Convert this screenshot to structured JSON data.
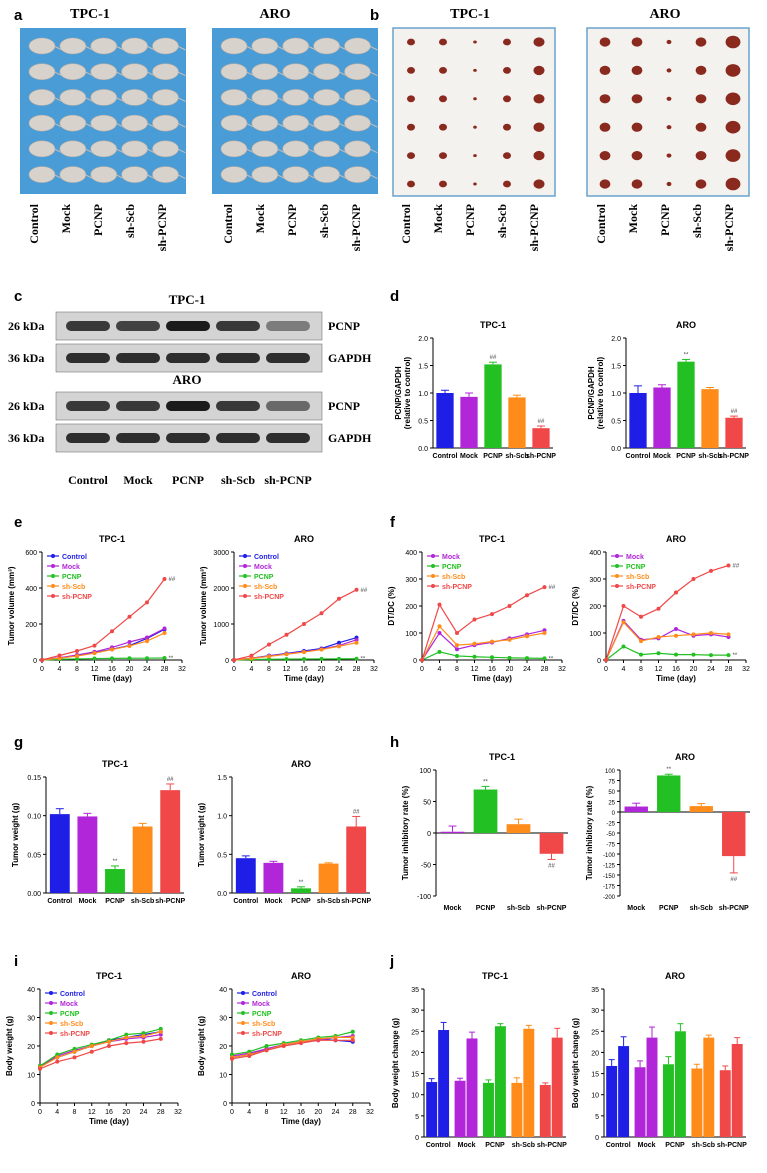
{
  "panel_letters": [
    "a",
    "b",
    "c",
    "d",
    "e",
    "f",
    "g",
    "h",
    "i",
    "j"
  ],
  "groups": [
    "Control",
    "Mock",
    "PCNP",
    "sh-Scb",
    "sh-PCNP"
  ],
  "groups_no_control": [
    "Mock",
    "PCNP",
    "sh-Scb",
    "sh-PCNP"
  ],
  "colors": {
    "Control": "#1e1ee6",
    "Mock": "#b026d8",
    "PCNP": "#22c022",
    "sh-Scb": "#ff8c1a",
    "sh-PCNP": "#f04848"
  },
  "panel_a": {
    "titles": [
      "TPC-1",
      "ARO"
    ],
    "photo_colors": {
      "bg": "#4a9cd6",
      "mouse": "#d8d2cc"
    }
  },
  "panel_b": {
    "titles": [
      "TPC-1",
      "ARO"
    ],
    "photo_colors": {
      "bg": "#f4f2ef",
      "tumor": "#8a2a1e"
    }
  },
  "panel_c": {
    "titles": [
      "TPC-1",
      "ARO"
    ],
    "row_left_labels": [
      "26 kDa",
      "36 kDa",
      "26 kDa",
      "36 kDa"
    ],
    "row_right_labels": [
      "PCNP",
      "GAPDH",
      "PCNP",
      "GAPDH"
    ],
    "lane_labels": [
      "Control",
      "Mock",
      "PCNP",
      "sh-Scb",
      "sh-PCNP"
    ]
  },
  "annotations": {
    "sig_star": "**",
    "sig_hash": "##"
  },
  "chart_data": [
    {
      "id": "d1",
      "type": "bar",
      "title": "TPC-1",
      "ylabel": "PCNP/GAPDH (relative to control)",
      "categories": [
        "Control",
        "Mock",
        "PCNP",
        "sh-Scb",
        "sh-PCNP"
      ],
      "values": [
        1.0,
        0.93,
        1.52,
        0.92,
        0.36
      ],
      "errors": [
        0.05,
        0.07,
        0.04,
        0.04,
        0.04
      ],
      "ylim": [
        0,
        2.0
      ],
      "yticks": [
        0.0,
        0.5,
        1.0,
        1.5,
        2.0
      ],
      "yticklabels": [
        "0.0",
        "0.5",
        "1.0",
        "1.5",
        "2.0"
      ],
      "marks": {
        "PCNP": "##",
        "sh-PCNP": "##"
      }
    },
    {
      "id": "d2",
      "type": "bar",
      "title": "ARO",
      "ylabel": "PCNP/GAPDH (relative to control)",
      "categories": [
        "Control",
        "Mock",
        "PCNP",
        "sh-Scb",
        "sh-PCNP"
      ],
      "values": [
        1.0,
        1.1,
        1.57,
        1.07,
        0.55
      ],
      "errors": [
        0.13,
        0.05,
        0.04,
        0.03,
        0.03
      ],
      "ylim": [
        0,
        2.0
      ],
      "yticks": [
        0.0,
        0.5,
        1.0,
        1.5,
        2.0
      ],
      "yticklabels": [
        "0.0",
        "0.5",
        "1.0",
        "1.5",
        "2.0"
      ],
      "marks": {
        "PCNP": "**",
        "sh-PCNP": "##"
      }
    },
    {
      "id": "e1",
      "type": "line",
      "title": "TPC-1",
      "xlabel": "Time (day)",
      "ylabel": "Tumor volume (mm³)",
      "x": [
        0,
        4,
        8,
        12,
        16,
        20,
        24,
        28
      ],
      "xlim": [
        0,
        32
      ],
      "xticks": [
        0,
        4,
        8,
        12,
        16,
        20,
        24,
        28,
        32
      ],
      "ylim": [
        0,
        600
      ],
      "yticks": [
        0,
        200,
        400,
        600
      ],
      "legend_position": "top-left",
      "series": [
        {
          "name": "Control",
          "values": [
            0,
            12,
            25,
            40,
            60,
            80,
            120,
            170
          ]
        },
        {
          "name": "Mock",
          "values": [
            0,
            12,
            28,
            45,
            70,
            100,
            125,
            175
          ]
        },
        {
          "name": "PCNP",
          "values": [
            0,
            4,
            6,
            8,
            9,
            10,
            10,
            11
          ]
        },
        {
          "name": "sh-Scb",
          "values": [
            0,
            10,
            22,
            38,
            58,
            78,
            105,
            150
          ]
        },
        {
          "name": "sh-PCNP",
          "values": [
            0,
            25,
            50,
            80,
            160,
            240,
            320,
            450
          ]
        }
      ],
      "marks": {
        "sh-PCNP": "##",
        "PCNP": "**"
      }
    },
    {
      "id": "e2",
      "type": "line",
      "title": "ARO",
      "xlabel": "Time (day)",
      "ylabel": "Tumor volume (mm³)",
      "x": [
        0,
        4,
        8,
        12,
        16,
        20,
        24,
        28
      ],
      "xlim": [
        0,
        32
      ],
      "xticks": [
        0,
        4,
        8,
        12,
        16,
        20,
        24,
        28,
        32
      ],
      "ylim": [
        0,
        3000
      ],
      "yticks": [
        0,
        1000,
        2000,
        3000
      ],
      "legend_position": "top-left",
      "series": [
        {
          "name": "Control",
          "values": [
            0,
            50,
            120,
            180,
            250,
            320,
            480,
            620
          ]
        },
        {
          "name": "Mock",
          "values": [
            0,
            50,
            110,
            170,
            230,
            300,
            400,
            560
          ]
        },
        {
          "name": "PCNP",
          "values": [
            0,
            15,
            20,
            25,
            28,
            30,
            32,
            35
          ]
        },
        {
          "name": "sh-Scb",
          "values": [
            0,
            45,
            100,
            160,
            220,
            290,
            380,
            480
          ]
        },
        {
          "name": "sh-PCNP",
          "values": [
            0,
            120,
            430,
            700,
            1000,
            1300,
            1700,
            1950
          ]
        }
      ],
      "marks": {
        "sh-PCNP": "##",
        "PCNP": "**"
      }
    },
    {
      "id": "f1",
      "type": "line",
      "title": "TPC-1",
      "xlabel": "Time (day)",
      "ylabel": "DT/DC (%)",
      "x": [
        0,
        4,
        8,
        12,
        16,
        20,
        24,
        28
      ],
      "xlim": [
        0,
        32
      ],
      "xticks": [
        0,
        4,
        8,
        12,
        16,
        20,
        24,
        28,
        32
      ],
      "ylim": [
        0,
        400
      ],
      "yticks": [
        0,
        100,
        200,
        300,
        400
      ],
      "legend_position": "top-left",
      "series": [
        {
          "name": "Mock",
          "values": [
            0,
            100,
            40,
            55,
            65,
            80,
            95,
            110
          ]
        },
        {
          "name": "PCNP",
          "values": [
            0,
            30,
            15,
            12,
            10,
            8,
            7,
            6
          ]
        },
        {
          "name": "sh-Scb",
          "values": [
            0,
            125,
            55,
            60,
            68,
            75,
            88,
            100
          ]
        },
        {
          "name": "sh-PCNP",
          "values": [
            0,
            205,
            100,
            150,
            170,
            200,
            240,
            270
          ]
        }
      ],
      "marks": {
        "sh-PCNP": "##",
        "PCNP": "**"
      }
    },
    {
      "id": "f2",
      "type": "line",
      "title": "ARO",
      "xlabel": "Time (day)",
      "ylabel": "DT/DC (%)",
      "x": [
        0,
        4,
        8,
        12,
        16,
        20,
        24,
        28
      ],
      "xlim": [
        0,
        32
      ],
      "xticks": [
        0,
        4,
        8,
        12,
        16,
        20,
        24,
        28,
        32
      ],
      "ylim": [
        0,
        400
      ],
      "yticks": [
        0,
        100,
        200,
        300,
        400
      ],
      "legend_position": "top-left",
      "series": [
        {
          "name": "Mock",
          "values": [
            0,
            145,
            75,
            80,
            115,
            90,
            95,
            85
          ]
        },
        {
          "name": "PCNP",
          "values": [
            0,
            50,
            20,
            25,
            20,
            20,
            18,
            18
          ]
        },
        {
          "name": "sh-Scb",
          "values": [
            0,
            140,
            70,
            85,
            90,
            95,
            100,
            95
          ]
        },
        {
          "name": "sh-PCNP",
          "values": [
            0,
            200,
            160,
            190,
            250,
            300,
            330,
            350
          ]
        }
      ],
      "marks": {
        "sh-PCNP": "##",
        "PCNP": "**"
      }
    },
    {
      "id": "g1",
      "type": "bar",
      "title": "TPC-1",
      "ylabel": "Tumor weight (g)",
      "categories": [
        "Control",
        "Mock",
        "PCNP",
        "sh-Scb",
        "sh-PCNP"
      ],
      "values": [
        0.102,
        0.099,
        0.031,
        0.086,
        0.133
      ],
      "errors": [
        0.007,
        0.004,
        0.004,
        0.004,
        0.008
      ],
      "ylim": [
        0,
        0.15
      ],
      "yticks": [
        0.0,
        0.05,
        0.1,
        0.15
      ],
      "yticklabels": [
        "0.00",
        "0.05",
        "0.10",
        "0.15"
      ],
      "marks": {
        "PCNP": "**",
        "sh-PCNP": "##"
      }
    },
    {
      "id": "g2",
      "type": "bar",
      "title": "ARO",
      "ylabel": "Tumor weight (g)",
      "categories": [
        "Control",
        "Mock",
        "PCNP",
        "sh-Scb",
        "sh-PCNP"
      ],
      "values": [
        0.45,
        0.39,
        0.06,
        0.38,
        0.86
      ],
      "errors": [
        0.03,
        0.02,
        0.02,
        0.01,
        0.13
      ],
      "ylim": [
        0,
        1.5
      ],
      "yticks": [
        0.0,
        0.5,
        1.0,
        1.5
      ],
      "yticklabels": [
        "0.0",
        "0.5",
        "1.0",
        "1.5"
      ],
      "marks": {
        "PCNP": "**",
        "sh-PCNP": "##"
      }
    },
    {
      "id": "h1",
      "type": "bar",
      "title": "TPC-1",
      "ylabel": "Tumor inhibitory rate (%)",
      "categories": [
        "Mock",
        "PCNP",
        "sh-Scb",
        "sh-PCNP"
      ],
      "values": [
        2,
        69,
        14,
        -33
      ],
      "errors": [
        9,
        5,
        8,
        9
      ],
      "ylim": [
        -100,
        100
      ],
      "yticks": [
        -100,
        -50,
        0,
        50,
        100
      ],
      "yticklabels": [
        "-100",
        "-50",
        "0",
        "50",
        "100"
      ],
      "marks": {
        "PCNP": "**",
        "sh-PCNP": "##"
      }
    },
    {
      "id": "h2",
      "type": "bar",
      "title": "ARO",
      "ylabel": "Tumor inhibitory rate (%)",
      "categories": [
        "Mock",
        "PCNP",
        "sh-Scb",
        "sh-PCNP"
      ],
      "values": [
        13,
        87,
        14,
        -105
      ],
      "errors": [
        8,
        3,
        6,
        40
      ],
      "ylim": [
        -200,
        100
      ],
      "yticks": [
        -200,
        -175,
        -150,
        -125,
        -100,
        -75,
        -50,
        -25,
        0,
        25,
        50,
        75,
        100
      ],
      "yticklabels": [
        "-200",
        "-175",
        "-150",
        "-125",
        "-100",
        "-75",
        "-50",
        "-25",
        "0",
        "25",
        "50",
        "75",
        "100"
      ],
      "marks": {
        "PCNP": "**",
        "sh-PCNP": "##"
      }
    },
    {
      "id": "i1",
      "type": "line",
      "title": "TPC-1",
      "xlabel": "Time (day)",
      "ylabel": "Body weight (g)",
      "x": [
        0,
        4,
        8,
        12,
        16,
        20,
        24,
        28
      ],
      "xlim": [
        0,
        32
      ],
      "xticks": [
        0,
        4,
        8,
        12,
        16,
        20,
        24,
        28,
        32
      ],
      "ylim": [
        0,
        40
      ],
      "yticks": [
        0,
        10,
        20,
        30,
        40
      ],
      "legend_position": "top-left",
      "series": [
        {
          "name": "Control",
          "values": [
            13,
            16,
            18,
            20,
            22,
            23,
            24,
            25
          ]
        },
        {
          "name": "Mock",
          "values": [
            13,
            16.5,
            18.5,
            20,
            21.5,
            22.5,
            23,
            24
          ]
        },
        {
          "name": "PCNP",
          "values": [
            13,
            17,
            19,
            20.5,
            22,
            24,
            24.5,
            26
          ]
        },
        {
          "name": "sh-Scb",
          "values": [
            12.5,
            16,
            18,
            20,
            21.5,
            23,
            23.5,
            25
          ]
        },
        {
          "name": "sh-PCNP",
          "values": [
            12,
            14.5,
            16,
            18,
            20,
            21,
            21.5,
            22.5
          ]
        }
      ]
    },
    {
      "id": "i2",
      "type": "line",
      "title": "ARO",
      "xlabel": "Time (day)",
      "ylabel": "Body weight (g)",
      "x": [
        0,
        4,
        8,
        12,
        16,
        20,
        24,
        28
      ],
      "xlim": [
        0,
        32
      ],
      "xticks": [
        0,
        4,
        8,
        12,
        16,
        20,
        24,
        28,
        32
      ],
      "ylim": [
        0,
        40
      ],
      "yticks": [
        0,
        10,
        20,
        30,
        40
      ],
      "legend_position": "top-left",
      "series": [
        {
          "name": "Control",
          "values": [
            16,
            17,
            19,
            20.5,
            21.5,
            22.5,
            22,
            21.5
          ]
        },
        {
          "name": "Mock",
          "values": [
            16.5,
            17.5,
            19,
            20.5,
            21.5,
            22,
            23,
            23.5
          ]
        },
        {
          "name": "PCNP",
          "values": [
            17,
            18,
            20,
            21,
            22,
            23,
            23.5,
            25
          ]
        },
        {
          "name": "sh-Scb",
          "values": [
            16,
            17,
            18.5,
            20.5,
            21.5,
            22.5,
            23,
            23
          ]
        },
        {
          "name": "sh-PCNP",
          "values": [
            15.5,
            16.5,
            18.5,
            20,
            21,
            22,
            22,
            22
          ]
        }
      ]
    },
    {
      "id": "j1",
      "type": "bar",
      "title": "TPC-1",
      "ylabel": "Body weight change (g)",
      "groups": [
        "Control",
        "Mock",
        "PCNP",
        "sh-Scb",
        "sh-PCNP"
      ],
      "series": [
        {
          "values": [
            13,
            13.3,
            12.8,
            12.8,
            12.3
          ],
          "errors": [
            0.8,
            0.6,
            0.7,
            1.2,
            0.5
          ]
        },
        {
          "values": [
            25.3,
            23.3,
            26.2,
            25.6,
            23.5
          ],
          "errors": [
            1.8,
            1.5,
            0.6,
            0.8,
            2.2
          ]
        }
      ],
      "ylim": [
        0,
        35
      ],
      "yticks": [
        0,
        5,
        10,
        15,
        20,
        25,
        30,
        35
      ]
    },
    {
      "id": "j2",
      "type": "bar",
      "title": "ARO",
      "ylabel": "Body weight change (g)",
      "groups": [
        "Control",
        "Mock",
        "PCNP",
        "sh-Scb",
        "sh-PCNP"
      ],
      "series": [
        {
          "values": [
            16.8,
            16.5,
            17.2,
            16.2,
            15.8
          ],
          "errors": [
            1.5,
            1.5,
            1.8,
            1.0,
            1.0
          ]
        },
        {
          "values": [
            21.5,
            23.5,
            25,
            23.5,
            22
          ],
          "errors": [
            2.2,
            2.5,
            1.8,
            0.6,
            1.5
          ]
        }
      ],
      "ylim": [
        0,
        35
      ],
      "yticks": [
        0,
        5,
        10,
        15,
        20,
        25,
        30,
        35
      ]
    }
  ]
}
